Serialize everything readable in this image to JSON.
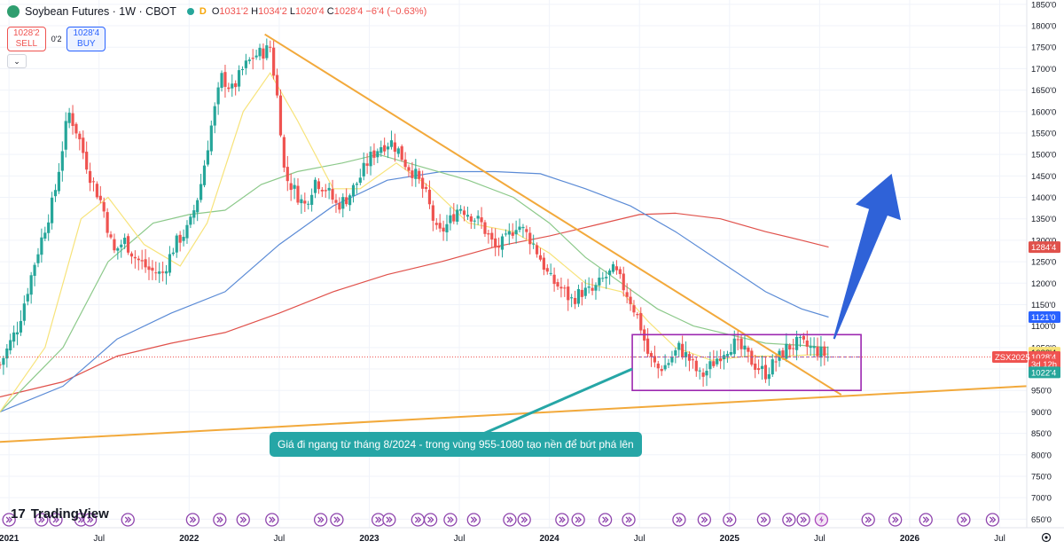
{
  "header": {
    "symbol": "Soybean Futures · 1W · CBOT",
    "badge": "D",
    "o_label": "O",
    "o": "1031'2",
    "h_label": "H",
    "h": "1034'2",
    "l_label": "L",
    "l": "1020'4",
    "c_label": "C",
    "c": "1028'4",
    "change": "−6'4 (−0.63%)"
  },
  "trade": {
    "sell_price": "1028'2",
    "sell_label": "SELL",
    "spread": "0'2",
    "buy_price": "1028'4",
    "buy_label": "BUY"
  },
  "branding": {
    "name": "TradingView"
  },
  "annotation": {
    "text": "Giá đi ngang từ tháng 8/2024 - trong vùng 955-1080 tạo nền để bứt phá lên"
  },
  "colors": {
    "up": "#26a69a",
    "down": "#ef5350",
    "ma_yellow": "#f7e37a",
    "ma_green": "#8cc98a",
    "ma_blue": "#5b8bd6",
    "ma_red": "#e0514b",
    "trendline": "#f2a93b",
    "box": "#9c27b0",
    "arrow": "#2f62d8",
    "annotation_bg": "#26a6a6"
  },
  "chart_data": {
    "type": "candlestick",
    "title": "Soybean Futures · 1W · CBOT",
    "x_ticks": [
      "2021",
      "Jul",
      "2022",
      "Jul",
      "2023",
      "Jul",
      "2024",
      "Jul",
      "2025",
      "Jul",
      "2026",
      "Jul"
    ],
    "x_tick_years": [
      2021.0,
      2021.5,
      2022.0,
      2022.5,
      2023.0,
      2023.5,
      2024.0,
      2024.5,
      2025.0,
      2025.5,
      2026.0,
      2026.5
    ],
    "y_ticks": [
      "650'0",
      "700'0",
      "750'0",
      "800'0",
      "850'0",
      "900'0",
      "950'0",
      "1000'0",
      "1050'0",
      "1100'0",
      "1150'0",
      "1200'0",
      "1250'0",
      "1300'0",
      "1350'0",
      "1400'0",
      "1450'0",
      "1500'0",
      "1550'0",
      "1600'0",
      "1650'0",
      "1700'0",
      "1750'0",
      "1800'0",
      "1850'0"
    ],
    "y_tick_values": [
      650,
      700,
      750,
      800,
      850,
      900,
      950,
      1000,
      1050,
      1100,
      1150,
      1200,
      1250,
      1300,
      1350,
      1400,
      1450,
      1500,
      1550,
      1600,
      1650,
      1700,
      1750,
      1800,
      1850
    ],
    "ylim": [
      630,
      1860
    ],
    "xlim": [
      2020.95,
      2026.65
    ],
    "close_path": [
      [
        2020.95,
        1010
      ],
      [
        2021.05,
        1100
      ],
      [
        2021.15,
        1260
      ],
      [
        2021.25,
        1400
      ],
      [
        2021.33,
        1600
      ],
      [
        2021.38,
        1550
      ],
      [
        2021.45,
        1450
      ],
      [
        2021.52,
        1380
      ],
      [
        2021.58,
        1270
      ],
      [
        2021.64,
        1300
      ],
      [
        2021.7,
        1260
      ],
      [
        2021.78,
        1230
      ],
      [
        2021.85,
        1220
      ],
      [
        2021.92,
        1290
      ],
      [
        2022.0,
        1330
      ],
      [
        2022.06,
        1420
      ],
      [
        2022.12,
        1560
      ],
      [
        2022.18,
        1680
      ],
      [
        2022.24,
        1650
      ],
      [
        2022.3,
        1700
      ],
      [
        2022.36,
        1730
      ],
      [
        2022.42,
        1740
      ],
      [
        2022.45,
        1750
      ],
      [
        2022.5,
        1600
      ],
      [
        2022.53,
        1450
      ],
      [
        2022.58,
        1420
      ],
      [
        2022.64,
        1380
      ],
      [
        2022.7,
        1440
      ],
      [
        2022.76,
        1420
      ],
      [
        2022.82,
        1380
      ],
      [
        2022.88,
        1400
      ],
      [
        2022.94,
        1440
      ],
      [
        2023.0,
        1490
      ],
      [
        2023.06,
        1520
      ],
      [
        2023.12,
        1530
      ],
      [
        2023.16,
        1510
      ],
      [
        2023.2,
        1480
      ],
      [
        2023.26,
        1450
      ],
      [
        2023.32,
        1400
      ],
      [
        2023.38,
        1310
      ],
      [
        2023.44,
        1340
      ],
      [
        2023.5,
        1380
      ],
      [
        2023.56,
        1360
      ],
      [
        2023.62,
        1340
      ],
      [
        2023.7,
        1280
      ],
      [
        2023.76,
        1300
      ],
      [
        2023.82,
        1340
      ],
      [
        2023.86,
        1320
      ],
      [
        2023.9,
        1300
      ],
      [
        2023.96,
        1250
      ],
      [
        2024.0,
        1210
      ],
      [
        2024.06,
        1190
      ],
      [
        2024.12,
        1160
      ],
      [
        2024.18,
        1180
      ],
      [
        2024.24,
        1180
      ],
      [
        2024.3,
        1210
      ],
      [
        2024.36,
        1230
      ],
      [
        2024.4,
        1200
      ],
      [
        2024.45,
        1160
      ],
      [
        2024.5,
        1110
      ],
      [
        2024.55,
        1030
      ],
      [
        2024.6,
        1000
      ],
      [
        2024.65,
        1010
      ],
      [
        2024.72,
        1050
      ],
      [
        2024.78,
        1020
      ],
      [
        2024.84,
        980
      ],
      [
        2024.9,
        1010
      ],
      [
        2024.96,
        1040
      ],
      [
        2025.02,
        1060
      ],
      [
        2025.08,
        1040
      ],
      [
        2025.14,
        1010
      ],
      [
        2025.2,
        990
      ],
      [
        2025.26,
        1020
      ],
      [
        2025.32,
        1050
      ],
      [
        2025.38,
        1060
      ],
      [
        2025.44,
        1050
      ],
      [
        2025.5,
        1040
      ],
      [
        2025.55,
        1028
      ]
    ],
    "ma_yellow": [
      [
        2020.95,
        900
      ],
      [
        2021.2,
        1050
      ],
      [
        2021.4,
        1350
      ],
      [
        2021.55,
        1400
      ],
      [
        2021.75,
        1290
      ],
      [
        2021.95,
        1240
      ],
      [
        2022.1,
        1340
      ],
      [
        2022.3,
        1600
      ],
      [
        2022.45,
        1690
      ],
      [
        2022.6,
        1580
      ],
      [
        2022.8,
        1420
      ],
      [
        2022.95,
        1420
      ],
      [
        2023.15,
        1480
      ],
      [
        2023.35,
        1420
      ],
      [
        2023.55,
        1340
      ],
      [
        2023.8,
        1320
      ],
      [
        2024.0,
        1270
      ],
      [
        2024.2,
        1200
      ],
      [
        2024.4,
        1180
      ],
      [
        2024.55,
        1110
      ],
      [
        2024.7,
        1050
      ],
      [
        2024.9,
        1020
      ],
      [
        2025.1,
        1030
      ],
      [
        2025.3,
        1030
      ],
      [
        2025.55,
        1035
      ]
    ],
    "ma_green": [
      [
        2020.95,
        900
      ],
      [
        2021.3,
        1050
      ],
      [
        2021.55,
        1250
      ],
      [
        2021.8,
        1340
      ],
      [
        2022.0,
        1360
      ],
      [
        2022.2,
        1370
      ],
      [
        2022.4,
        1430
      ],
      [
        2022.6,
        1460
      ],
      [
        2022.85,
        1480
      ],
      [
        2023.05,
        1500
      ],
      [
        2023.3,
        1470
      ],
      [
        2023.55,
        1440
      ],
      [
        2023.8,
        1400
      ],
      [
        2024.0,
        1340
      ],
      [
        2024.2,
        1260
      ],
      [
        2024.4,
        1200
      ],
      [
        2024.6,
        1140
      ],
      [
        2024.8,
        1100
      ],
      [
        2025.0,
        1080
      ],
      [
        2025.2,
        1060
      ],
      [
        2025.4,
        1055
      ],
      [
        2025.55,
        1050
      ]
    ],
    "ma_blue": [
      [
        2020.95,
        900
      ],
      [
        2021.3,
        960
      ],
      [
        2021.6,
        1070
      ],
      [
        2021.9,
        1130
      ],
      [
        2022.2,
        1180
      ],
      [
        2022.5,
        1290
      ],
      [
        2022.8,
        1380
      ],
      [
        2023.1,
        1440
      ],
      [
        2023.4,
        1460
      ],
      [
        2023.7,
        1460
      ],
      [
        2023.95,
        1455
      ],
      [
        2024.2,
        1420
      ],
      [
        2024.45,
        1380
      ],
      [
        2024.7,
        1320
      ],
      [
        2024.95,
        1250
      ],
      [
        2025.2,
        1180
      ],
      [
        2025.4,
        1140
      ],
      [
        2025.55,
        1121
      ]
    ],
    "ma_red": [
      [
        2020.95,
        935
      ],
      [
        2021.3,
        970
      ],
      [
        2021.6,
        1030
      ],
      [
        2021.9,
        1060
      ],
      [
        2022.2,
        1085
      ],
      [
        2022.5,
        1130
      ],
      [
        2022.8,
        1180
      ],
      [
        2023.1,
        1220
      ],
      [
        2023.4,
        1250
      ],
      [
        2023.7,
        1285
      ],
      [
        2024.0,
        1310
      ],
      [
        2024.25,
        1335
      ],
      [
        2024.5,
        1360
      ],
      [
        2024.7,
        1363
      ],
      [
        2024.95,
        1350
      ],
      [
        2025.2,
        1320
      ],
      [
        2025.4,
        1300
      ],
      [
        2025.55,
        1284
      ]
    ],
    "trend_down": [
      [
        2022.42,
        1780
      ],
      [
        2025.62,
        940
      ]
    ],
    "trend_up": [
      [
        2020.95,
        830
      ],
      [
        2026.65,
        960
      ]
    ],
    "range_box": {
      "x": [
        2024.46,
        2025.73
      ],
      "y": [
        950,
        1080
      ]
    },
    "breakout_arrow": {
      "from": [
        2025.58,
        1070
      ],
      "to": [
        2025.9,
        1455
      ]
    },
    "price_labels": [
      {
        "text": "1284'4",
        "value": 1284,
        "bg": "#e0514b",
        "fg": "#ffffff"
      },
      {
        "text": "1121'0",
        "value": 1121,
        "bg": "#2962ff",
        "fg": "#ffffff"
      },
      {
        "text": "1038'4",
        "value": 1038,
        "bg": "#f7e37a",
        "fg": "#131722"
      },
      {
        "text": "1028'4",
        "value": 1028,
        "bg": "#ef5350",
        "fg": "#ffffff"
      },
      {
        "text": "3d 12h",
        "value": 1011,
        "bg": "#ef5350",
        "fg": "#ffffff"
      },
      {
        "text": "1022'4",
        "value": 992,
        "bg": "#26a69a",
        "fg": "#ffffff"
      }
    ],
    "current_tag": "ZSX2025",
    "current_price": 1028,
    "event_years": [
      2021.0,
      2021.18,
      2021.26,
      2021.4,
      2021.45,
      2021.66,
      2022.02,
      2022.17,
      2022.3,
      2022.46,
      2022.73,
      2022.82,
      2023.05,
      2023.11,
      2023.27,
      2023.34,
      2023.45,
      2023.58,
      2023.78,
      2023.86,
      2024.07,
      2024.16,
      2024.31,
      2024.44,
      2024.72,
      2024.86,
      2025.0,
      2025.19,
      2025.33,
      2025.41,
      2025.51,
      2025.77,
      2025.92,
      2026.09,
      2026.3,
      2026.46
    ]
  }
}
